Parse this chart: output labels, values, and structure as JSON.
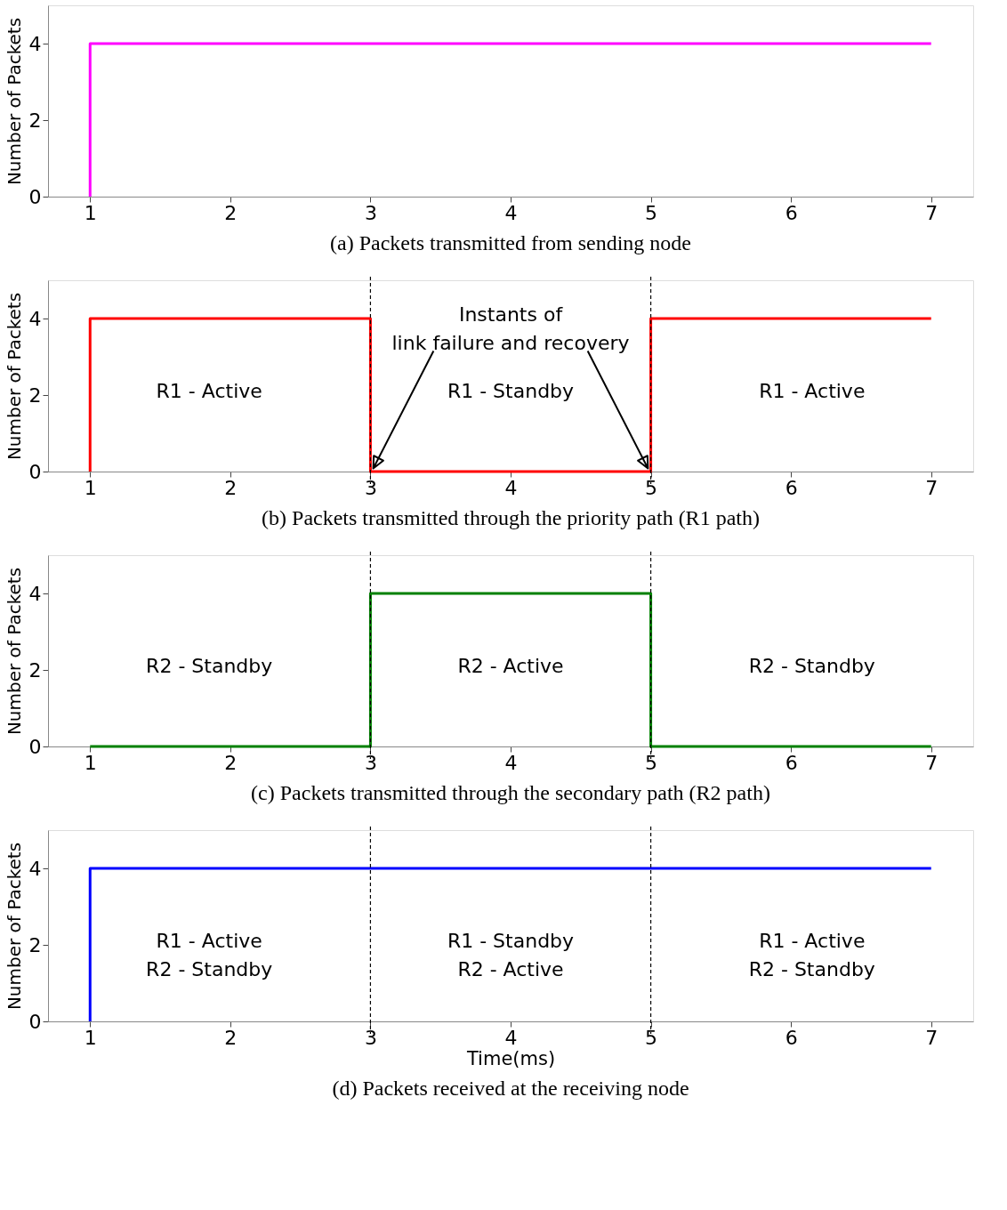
{
  "chart_data": [
    {
      "type": "step",
      "title": "(a) Packets transmitted from sending node",
      "ylabel": "Number of Packets",
      "xlim": [
        0.7,
        7.3
      ],
      "ylim": [
        0,
        5
      ],
      "xticks": [
        1,
        2,
        3,
        4,
        5,
        6,
        7
      ],
      "yticks": [
        0,
        2,
        4
      ],
      "grid": false,
      "series": [
        {
          "color": "#ff00ff",
          "x": [
            1,
            1,
            7
          ],
          "values": [
            0,
            4,
            4
          ]
        }
      ]
    },
    {
      "type": "step",
      "title": "(b) Packets transmitted through the priority path (R1 path)",
      "ylabel": "Number of Packets",
      "xlim": [
        0.7,
        7.3
      ],
      "ylim": [
        0,
        5
      ],
      "xticks": [
        1,
        2,
        3,
        4,
        5,
        6,
        7
      ],
      "yticks": [
        0,
        2,
        4
      ],
      "grid": false,
      "series": [
        {
          "color": "#ff0000",
          "x": [
            1,
            1,
            3,
            5,
            7
          ],
          "values": [
            0,
            4,
            0,
            4,
            4
          ]
        }
      ],
      "ref_lines": [
        {
          "axis": "x",
          "value": 3,
          "color": "#000000",
          "line_style": "dashed"
        },
        {
          "axis": "x",
          "value": 5,
          "color": "#000000",
          "line_style": "dashed"
        }
      ],
      "annotations": [
        "R1 - Active",
        "R1 - Standby",
        "R1 - Active",
        {
          "text": "Instants of\nlink failure and recovery",
          "x": 3,
          "y": 0
        }
      ]
    },
    {
      "type": "step",
      "title": "(c) Packets transmitted through the secondary path (R2 path)",
      "ylabel": "Number of Packets",
      "xlim": [
        0.7,
        7.3
      ],
      "ylim": [
        0,
        5
      ],
      "xticks": [
        1,
        2,
        3,
        4,
        5,
        6,
        7
      ],
      "yticks": [
        0,
        2,
        4
      ],
      "grid": false,
      "series": [
        {
          "color": "#008000",
          "x": [
            1,
            3,
            5,
            7
          ],
          "values": [
            0,
            4,
            0,
            0
          ]
        }
      ],
      "ref_lines": [
        {
          "axis": "x",
          "value": 3,
          "color": "#000000",
          "line_style": "dashed"
        },
        {
          "axis": "x",
          "value": 5,
          "color": "#000000",
          "line_style": "dashed"
        }
      ],
      "annotations": [
        "R2 - Standby",
        "R2 - Active",
        "R2 - Standby"
      ]
    },
    {
      "type": "step",
      "title": "(d) Packets received at the receiving node",
      "xlabel": "Time(ms)",
      "ylabel": "Number of Packets",
      "xlim": [
        0.7,
        7.3
      ],
      "ylim": [
        0,
        5
      ],
      "xticks": [
        1,
        2,
        3,
        4,
        5,
        6,
        7
      ],
      "yticks": [
        0,
        2,
        4
      ],
      "grid": false,
      "series": [
        {
          "color": "#0000ff",
          "x": [
            1,
            1,
            7
          ],
          "values": [
            0,
            4,
            4
          ]
        }
      ],
      "ref_lines": [
        {
          "axis": "x",
          "value": 3,
          "color": "#000000",
          "line_style": "dashed"
        },
        {
          "axis": "x",
          "value": 5,
          "color": "#000000",
          "line_style": "dashed"
        }
      ],
      "annotations": [
        "R1 - Active\nR2 - Standby",
        "R1 - Standby\nR2 - Active",
        "R1 - Active\nR2 - Standby"
      ]
    }
  ]
}
